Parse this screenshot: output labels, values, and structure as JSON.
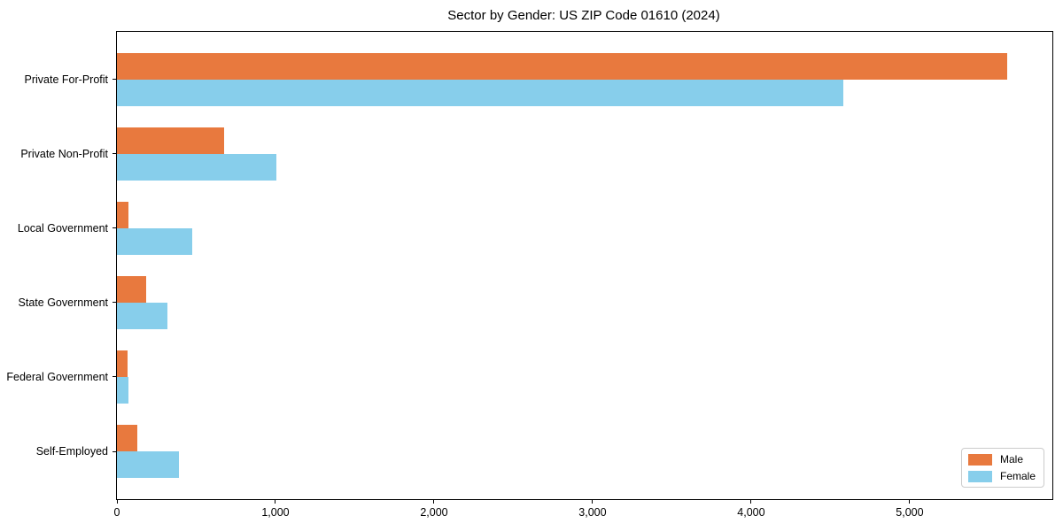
{
  "chart_data": {
    "type": "bar",
    "orientation": "horizontal",
    "title": "Sector by Gender: US ZIP Code 01610 (2024)",
    "categories": [
      "Private For-Profit",
      "Private Non-Profit",
      "Local Government",
      "State Government",
      "Federal Government",
      "Self-Employed"
    ],
    "series": [
      {
        "name": "Male",
        "color": "#e8793e",
        "values": [
          5615,
          676,
          75,
          185,
          65,
          130
        ]
      },
      {
        "name": "Female",
        "color": "#87ceeb",
        "values": [
          4580,
          1004,
          475,
          318,
          70,
          392
        ]
      }
    ],
    "xlim": [
      0,
      5900
    ],
    "x_ticks": {
      "values": [
        0,
        1000,
        2000,
        3000,
        4000,
        5000
      ],
      "labels": [
        "0",
        "1,000",
        "2,000",
        "3,000",
        "4,000",
        "5,000"
      ]
    },
    "xlabel": "",
    "ylabel": "",
    "grid": false,
    "legend_position": "lower right",
    "frame_color": "#000000",
    "background_color": "#ffffff"
  }
}
